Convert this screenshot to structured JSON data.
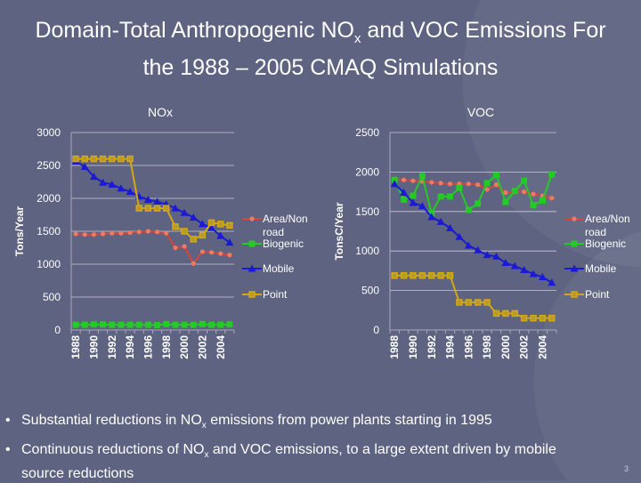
{
  "title": {
    "line1_a": "Domain-Total Anthropogenic NO",
    "line1_sub": "x",
    "line1_b": " and VOC Emissions For",
    "line2": "the 1988 – 2005 CMAQ Simulations"
  },
  "bullets": [
    {
      "a": "Substantial reductions in NO",
      "sub": "x",
      "b": " emissions from power plants starting in 1995",
      "c": ""
    },
    {
      "a": "Continuous reductions of NO",
      "sub": "x",
      "b": " and VOC emissions, to a large extent driven by mobile",
      "c": "source reductions"
    }
  ],
  "page_number": "3",
  "chart_data": [
    {
      "type": "line",
      "title": "NOx",
      "xlabel": "",
      "ylabel": "Tons/Year",
      "ylim": [
        0,
        3000
      ],
      "yticks": [
        0,
        500,
        1000,
        1500,
        2000,
        2500,
        3000
      ],
      "x": [
        1988,
        1989,
        1990,
        1991,
        1992,
        1993,
        1994,
        1995,
        1996,
        1997,
        1998,
        1999,
        2000,
        2001,
        2002,
        2003,
        2004,
        2005
      ],
      "xtick_labels": [
        "1988",
        "1990",
        "1992",
        "1994",
        "1996",
        "1998",
        "2000",
        "2002",
        "2004"
      ],
      "grid": true,
      "legend": "right",
      "series": [
        {
          "name": "Area/Non road",
          "color": "#d9453a",
          "marker": "circle",
          "values": [
            1460,
            1450,
            1450,
            1460,
            1470,
            1470,
            1480,
            1490,
            1500,
            1490,
            1470,
            1250,
            1270,
            1010,
            1190,
            1180,
            1160,
            1140
          ]
        },
        {
          "name": "Biogenic",
          "color": "#22cc22",
          "marker": "square",
          "values": [
            80,
            80,
            85,
            85,
            80,
            80,
            80,
            80,
            80,
            75,
            90,
            80,
            80,
            80,
            90,
            80,
            80,
            85
          ]
        },
        {
          "name": "Mobile",
          "color": "#1a1ad6",
          "marker": "triangle",
          "values": [
            2560,
            2480,
            2330,
            2240,
            2210,
            2150,
            2100,
            2030,
            1980,
            1950,
            1910,
            1850,
            1780,
            1710,
            1610,
            1550,
            1430,
            1330
          ]
        },
        {
          "name": "Point",
          "color": "#d4a814",
          "marker": "square-x",
          "values": [
            2600,
            2600,
            2600,
            2600,
            2600,
            2600,
            2600,
            1850,
            1850,
            1850,
            1850,
            1570,
            1500,
            1380,
            1440,
            1630,
            1610,
            1590
          ]
        }
      ]
    },
    {
      "type": "line",
      "title": "VOC",
      "xlabel": "",
      "ylabel": "TonsC/Year",
      "ylim": [
        0,
        2500
      ],
      "yticks": [
        0,
        500,
        1000,
        1500,
        2000,
        2500
      ],
      "x": [
        1988,
        1989,
        1990,
        1991,
        1992,
        1993,
        1994,
        1995,
        1996,
        1997,
        1998,
        1999,
        2000,
        2001,
        2002,
        2003,
        2004,
        2005
      ],
      "xtick_labels": [
        "1988",
        "1990",
        "1992",
        "1994",
        "1996",
        "1998",
        "2000",
        "2002",
        "2004"
      ],
      "grid": true,
      "legend": "right",
      "series": [
        {
          "name": "Area/Non road",
          "color": "#d9453a",
          "marker": "circle",
          "values": [
            1910,
            1900,
            1890,
            1880,
            1870,
            1860,
            1850,
            1850,
            1850,
            1840,
            1780,
            1840,
            1740,
            1750,
            1750,
            1720,
            1700,
            1670
          ]
        },
        {
          "name": "Biogenic",
          "color": "#22cc22",
          "marker": "square",
          "values": [
            1900,
            1650,
            1700,
            1950,
            1480,
            1690,
            1690,
            1800,
            1520,
            1600,
            1860,
            1960,
            1620,
            1760,
            1890,
            1580,
            1640,
            1970
          ]
        },
        {
          "name": "Mobile",
          "color": "#1a1ad6",
          "marker": "triangle",
          "values": [
            1850,
            1740,
            1610,
            1570,
            1430,
            1370,
            1290,
            1180,
            1070,
            1010,
            950,
            930,
            850,
            810,
            760,
            710,
            670,
            600
          ]
        },
        {
          "name": "Point",
          "color": "#d4a814",
          "marker": "square-x",
          "values": [
            690,
            690,
            690,
            690,
            690,
            690,
            690,
            350,
            350,
            350,
            350,
            210,
            210,
            210,
            150,
            150,
            150,
            150
          ]
        }
      ]
    }
  ]
}
